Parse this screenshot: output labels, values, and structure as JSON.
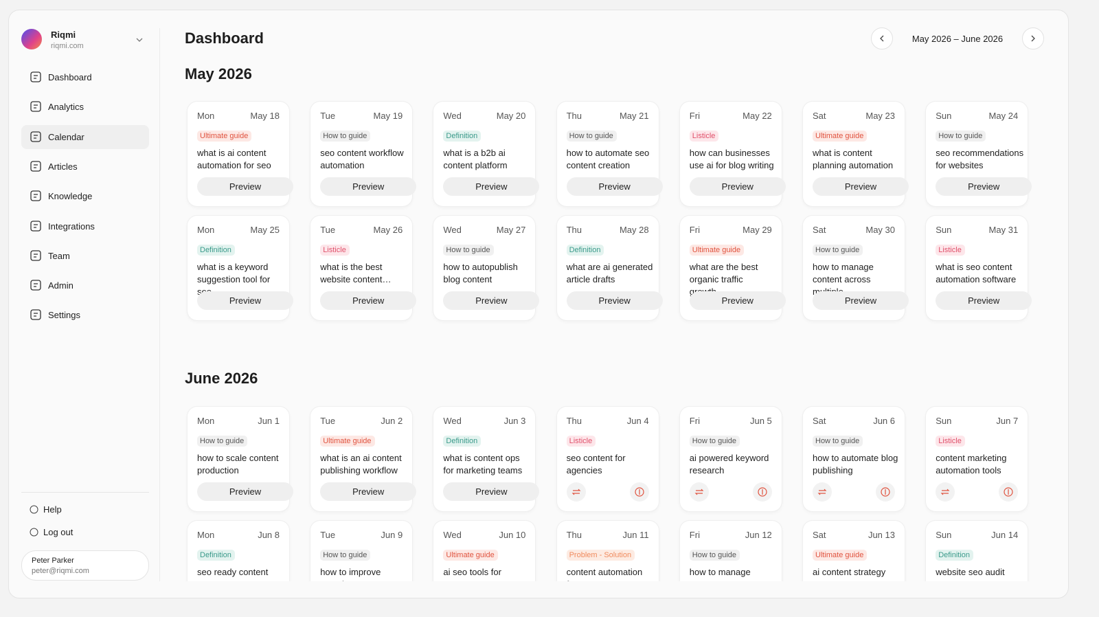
{
  "sidebar": {
    "user": {
      "name": "Riqmi",
      "site": "riqmi.com"
    },
    "nav": [
      "Dashboard",
      "Analytics",
      "Calendar",
      "Articles",
      "Knowledge",
      "Integrations",
      "Team",
      "Admin",
      "Settings"
    ],
    "active": 2,
    "footer": [
      "Help",
      "Log out"
    ],
    "account": {
      "name": "Peter Parker",
      "email": "peter@riqmi.com"
    }
  },
  "header": {
    "title": "Dashboard",
    "range": "May 2026 – June 2026"
  },
  "months": [
    {
      "title": "May 2026",
      "cards": [
        {
          "day": "Mon",
          "date": "May 18",
          "tag": {
            "label": "Ultimate guide",
            "color": "#e0533f",
            "bg": "#fde8e4"
          },
          "text": "what is ai content automation for seo",
          "action": "Preview"
        },
        {
          "day": "Tue",
          "date": "May 19",
          "tag": {
            "label": "How to guide",
            "color": "#555555",
            "bg": "#f0f0f0"
          },
          "text": "seo content workflow automation",
          "action": "Preview"
        },
        {
          "day": "Wed",
          "date": "May 20",
          "tag": {
            "label": "Definition",
            "color": "#3a9a8a",
            "bg": "#e3f3ef"
          },
          "text": "what is a b2b ai content platform",
          "action": "Preview"
        },
        {
          "day": "Thu",
          "date": "May 21",
          "tag": {
            "label": "How to guide",
            "color": "#555555",
            "bg": "#f0f0f0"
          },
          "text": "how to automate seo content creation",
          "action": "Preview"
        },
        {
          "day": "Fri",
          "date": "May 22",
          "tag": {
            "label": "Listicle",
            "color": "#e0506a",
            "bg": "#fde6ea"
          },
          "text": "how can businesses use ai for blog writing",
          "action": "Preview"
        },
        {
          "day": "Sat",
          "date": "May 23",
          "tag": {
            "label": "Ultimate guide",
            "color": "#e0533f",
            "bg": "#fde8e4"
          },
          "text": "what is content planning automation",
          "action": "Preview"
        },
        {
          "day": "Sun",
          "date": "May 24",
          "tag": {
            "label": "How to guide",
            "color": "#555555",
            "bg": "#f0f0f0"
          },
          "text": "seo recommendations for websites",
          "action": "Preview"
        },
        {
          "day": "Mon",
          "date": "May 25",
          "tag": {
            "label": "Definition",
            "color": "#3a9a8a",
            "bg": "#e3f3ef"
          },
          "text": "what is a keyword suggestion tool for seo",
          "action": "Preview"
        },
        {
          "day": "Tue",
          "date": "May 26",
          "tag": {
            "label": "Listicle",
            "color": "#e0506a",
            "bg": "#fde6ea"
          },
          "text": "what is the best website content…",
          "action": "Preview"
        },
        {
          "day": "Wed",
          "date": "May 27",
          "tag": {
            "label": "How to guide",
            "color": "#555555",
            "bg": "#f0f0f0"
          },
          "text": "how to autopublish blog content",
          "action": "Preview"
        },
        {
          "day": "Thu",
          "date": "May 28",
          "tag": {
            "label": "Definition",
            "color": "#3a9a8a",
            "bg": "#e3f3ef"
          },
          "text": "what are ai generated article drafts",
          "action": "Preview"
        },
        {
          "day": "Fri",
          "date": "May 29",
          "tag": {
            "label": "Ultimate guide",
            "color": "#e0533f",
            "bg": "#fde8e4"
          },
          "text": "what are the best organic traffic growth…",
          "action": "Preview"
        },
        {
          "day": "Sat",
          "date": "May 30",
          "tag": {
            "label": "How to guide",
            "color": "#555555",
            "bg": "#f0f0f0"
          },
          "text": "how to manage content across multiple…",
          "action": "Preview"
        },
        {
          "day": "Sun",
          "date": "May 31",
          "tag": {
            "label": "Listicle",
            "color": "#e0506a",
            "bg": "#fde6ea"
          },
          "text": "what is seo content automation software",
          "action": "Preview"
        }
      ]
    },
    {
      "title": "June 2026",
      "cards": [
        {
          "day": "Mon",
          "date": "Jun 1",
          "tag": {
            "label": "How to guide",
            "color": "#555555",
            "bg": "#f0f0f0"
          },
          "text": "how to scale content production",
          "action": "Preview"
        },
        {
          "day": "Tue",
          "date": "Jun 2",
          "tag": {
            "label": "Ultimate guide",
            "color": "#e0533f",
            "bg": "#fde8e4"
          },
          "text": "what is an ai content publishing workflow",
          "action": "Preview"
        },
        {
          "day": "Wed",
          "date": "Jun 3",
          "tag": {
            "label": "Definition",
            "color": "#3a9a8a",
            "bg": "#e3f3ef"
          },
          "text": "what is content ops for marketing teams",
          "action": "Preview"
        },
        {
          "day": "Thu",
          "date": "Jun 4",
          "tag": {
            "label": "Listicle",
            "color": "#e0506a",
            "bg": "#fde6ea"
          },
          "text": "seo content for agencies"
        },
        {
          "day": "Fri",
          "date": "Jun 5",
          "tag": {
            "label": "How to guide",
            "color": "#555555",
            "bg": "#f0f0f0"
          },
          "text": "ai powered keyword research"
        },
        {
          "day": "Sat",
          "date": "Jun 6",
          "tag": {
            "label": "How to guide",
            "color": "#555555",
            "bg": "#f0f0f0"
          },
          "text": "how to automate blog publishing"
        },
        {
          "day": "Sun",
          "date": "Jun 7",
          "tag": {
            "label": "Listicle",
            "color": "#e0506a",
            "bg": "#fde6ea"
          },
          "text": "content marketing automation tools"
        },
        {
          "day": "Mon",
          "date": "Jun 8",
          "tag": {
            "label": "Definition",
            "color": "#3a9a8a",
            "bg": "#e3f3ef"
          },
          "text": "seo ready content"
        },
        {
          "day": "Tue",
          "date": "Jun 9",
          "tag": {
            "label": "How to guide",
            "color": "#555555",
            "bg": "#f0f0f0"
          },
          "text": "how to improve search"
        },
        {
          "day": "Wed",
          "date": "Jun 10",
          "tag": {
            "label": "Ultimate guide",
            "color": "#e0533f",
            "bg": "#fde8e4"
          },
          "text": "ai seo tools for"
        },
        {
          "day": "Thu",
          "date": "Jun 11",
          "tag": {
            "label": "Problem - Solution",
            "color": "#f08a5d",
            "bg": "#fdebe2"
          },
          "text": "content automation for"
        },
        {
          "day": "Fri",
          "date": "Jun 12",
          "tag": {
            "label": "How to guide",
            "color": "#555555",
            "bg": "#f0f0f0"
          },
          "text": "how to manage"
        },
        {
          "day": "Sat",
          "date": "Jun 13",
          "tag": {
            "label": "Ultimate guide",
            "color": "#e0533f",
            "bg": "#fde8e4"
          },
          "text": "ai content strategy"
        },
        {
          "day": "Sun",
          "date": "Jun 14",
          "tag": {
            "label": "Definition",
            "color": "#3a9a8a",
            "bg": "#e3f3ef"
          },
          "text": "website seo audit"
        }
      ]
    }
  ]
}
